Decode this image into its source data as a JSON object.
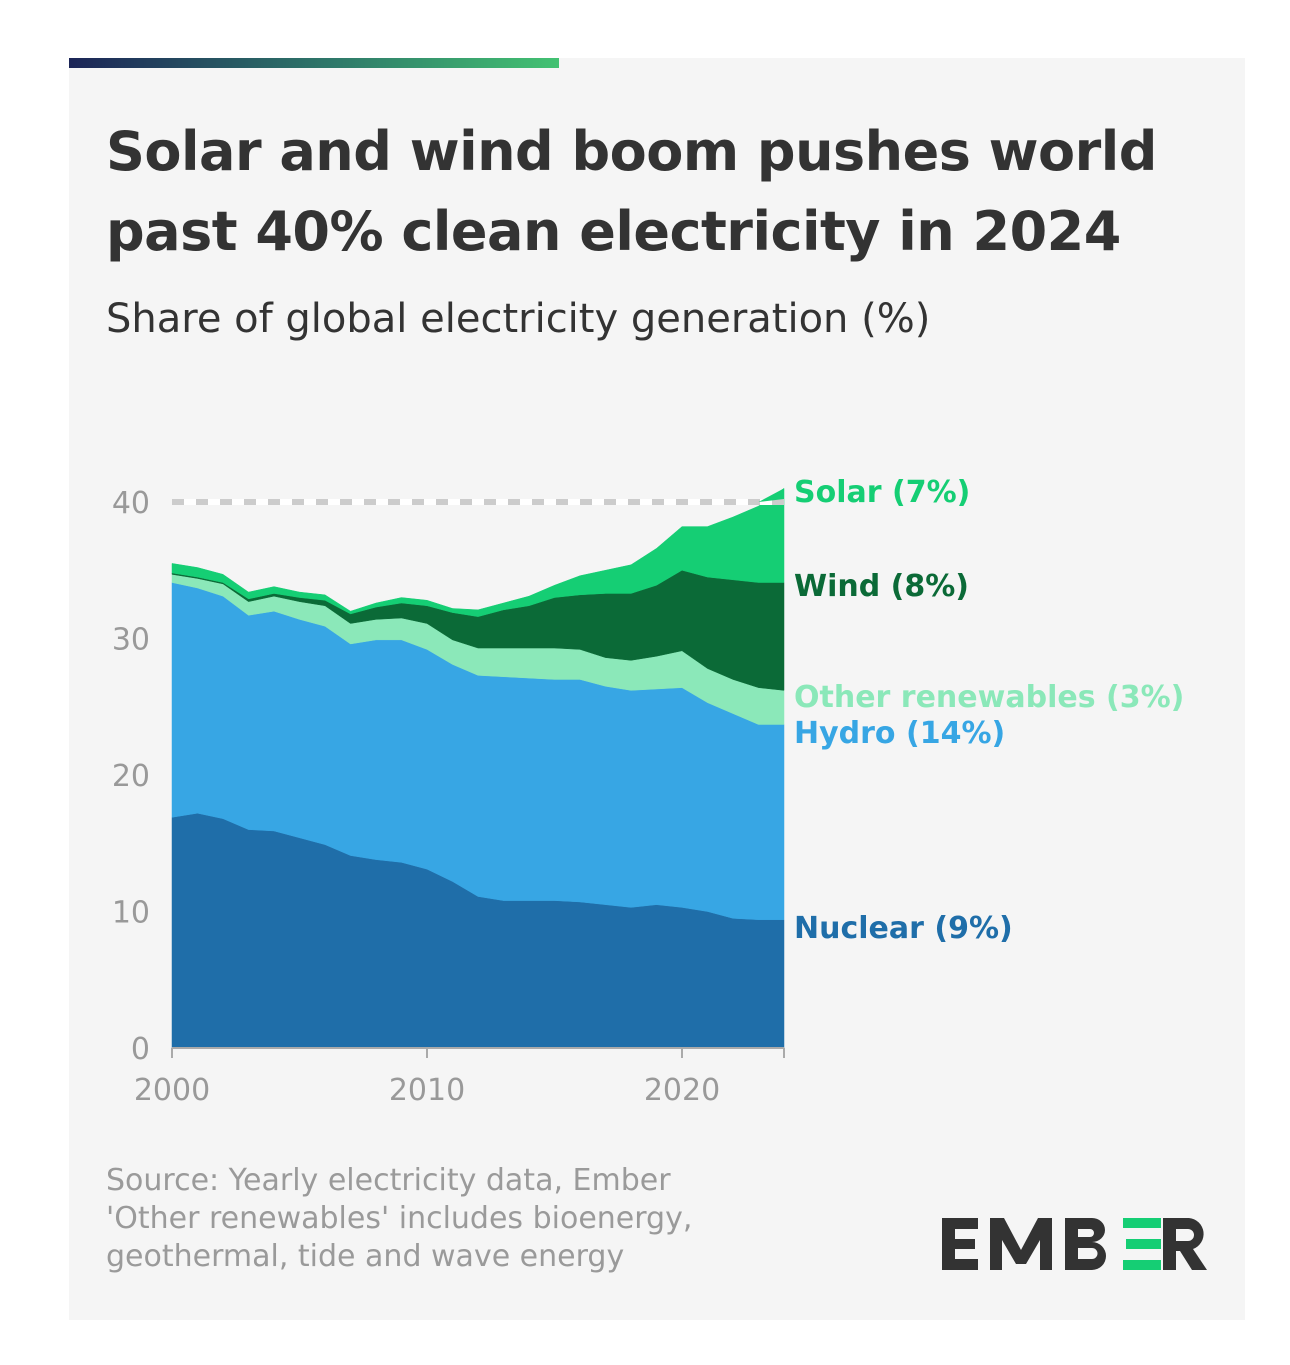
{
  "title": "Solar and wind boom pushes world past 40% clean electricity in 2024",
  "subtitle": "Share of global electricity generation (%)",
  "footer": {
    "line1": "Source: Yearly electricity data, Ember",
    "line2": "'Other renewables' includes bioenergy,",
    "line3": "geothermal, tide and wave energy"
  },
  "logo": "EMBER",
  "chart_data": {
    "type": "area",
    "stacked": true,
    "x": [
      2000,
      2001,
      2002,
      2003,
      2004,
      2005,
      2006,
      2007,
      2008,
      2009,
      2010,
      2011,
      2012,
      2013,
      2014,
      2015,
      2016,
      2017,
      2018,
      2019,
      2020,
      2021,
      2022,
      2023,
      2024
    ],
    "series": [
      {
        "name": "Nuclear (9%)",
        "color": "#1f6ea9",
        "values": [
          16.9,
          17.2,
          16.8,
          16.0,
          15.9,
          15.4,
          14.9,
          14.1,
          13.8,
          13.6,
          13.1,
          12.2,
          11.1,
          10.8,
          10.8,
          10.8,
          10.7,
          10.5,
          10.3,
          10.5,
          10.3,
          10.0,
          9.5,
          9.4,
          9.4
        ]
      },
      {
        "name": "Hydro (14%)",
        "color": "#37a6e4",
        "values": [
          17.2,
          16.5,
          16.3,
          15.7,
          16.1,
          16.0,
          16.0,
          15.5,
          16.1,
          16.3,
          16.1,
          15.9,
          16.2,
          16.4,
          16.3,
          16.2,
          16.3,
          16.0,
          15.9,
          15.8,
          16.1,
          15.3,
          15.0,
          14.3,
          14.3
        ]
      },
      {
        "name": "Other renewables (3%)",
        "color": "#8be8b9",
        "values": [
          0.6,
          0.7,
          0.9,
          1.0,
          1.1,
          1.3,
          1.5,
          1.5,
          1.5,
          1.6,
          1.9,
          1.8,
          2.0,
          2.1,
          2.2,
          2.3,
          2.2,
          2.1,
          2.2,
          2.4,
          2.7,
          2.5,
          2.5,
          2.7,
          2.5
        ]
      },
      {
        "name": "Wind (8%)",
        "color": "#0b6a37",
        "values": [
          0.1,
          0.1,
          0.1,
          0.2,
          0.2,
          0.3,
          0.4,
          0.7,
          0.9,
          1.1,
          1.3,
          2.0,
          2.3,
          2.8,
          3.1,
          3.7,
          4.0,
          4.7,
          4.9,
          5.2,
          5.9,
          6.7,
          7.3,
          7.7,
          7.9
        ]
      },
      {
        "name": "Solar (7%)",
        "color": "#15ce74",
        "values": [
          0.7,
          0.7,
          0.6,
          0.5,
          0.5,
          0.4,
          0.4,
          0.2,
          0.3,
          0.4,
          0.4,
          0.3,
          0.5,
          0.5,
          0.7,
          0.9,
          1.4,
          1.7,
          2.1,
          2.7,
          3.2,
          3.7,
          4.6,
          5.6,
          6.9
        ]
      }
    ],
    "xlim": [
      2000,
      2024
    ],
    "ylim": [
      0,
      40
    ],
    "yticks": [
      "0",
      "10",
      "20",
      "30",
      "40"
    ],
    "xticks": [
      "2000",
      "2010",
      "2020"
    ],
    "reference_line": 40,
    "grid": false,
    "legend": "direct labels right"
  }
}
